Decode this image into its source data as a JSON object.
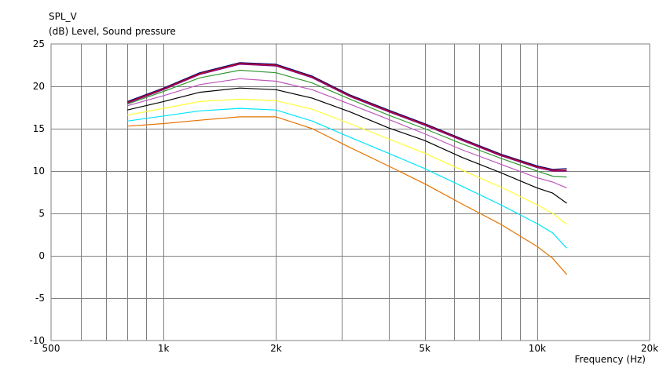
{
  "chart_data": {
    "type": "line",
    "title": "SPL_V",
    "ylabel": "(dB)  Level, Sound pressure",
    "xlabel": "Frequency  (Hz)",
    "x_scale": "log",
    "xlim": [
      500,
      20000
    ],
    "ylim": [
      -10,
      25
    ],
    "grid": true,
    "y_ticks": [
      25,
      20,
      15,
      10,
      5,
      0,
      -5,
      -10
    ],
    "y_tick_labels": [
      "25",
      "20",
      "15",
      "10",
      "5",
      "0",
      "-5",
      "-10"
    ],
    "x_ticks": [
      500,
      1000,
      2000,
      5000,
      10000,
      20000
    ],
    "x_tick_labels": [
      "500",
      "1k",
      "2k",
      "5k",
      "10k",
      "20k"
    ],
    "x_minor_gridlines": [
      600,
      700,
      800,
      900,
      1000,
      2000,
      3000,
      4000,
      5000,
      6000,
      7000,
      8000,
      9000,
      10000
    ],
    "x": [
      800,
      1000,
      1250,
      1600,
      2000,
      2500,
      3150,
      4000,
      5000,
      6300,
      8000,
      10000,
      11000,
      12000
    ],
    "series": [
      {
        "color": "#000080",
        "values": [
          18.2,
          19.8,
          21.6,
          22.8,
          22.6,
          21.2,
          19.0,
          17.2,
          15.6,
          13.8,
          12.0,
          10.6,
          10.2,
          10.3
        ]
      },
      {
        "color": "#cc0000",
        "values": [
          18.1,
          19.7,
          21.5,
          22.7,
          22.5,
          21.1,
          18.9,
          17.1,
          15.5,
          13.7,
          11.9,
          10.5,
          10.1,
          10.1
        ]
      },
      {
        "color": "#800080",
        "values": [
          18.0,
          19.6,
          21.4,
          22.6,
          22.4,
          21.0,
          18.8,
          17.0,
          15.4,
          13.6,
          11.8,
          10.4,
          10.0,
          10.0
        ]
      },
      {
        "color": "#339933",
        "values": [
          17.9,
          19.4,
          21.0,
          21.9,
          21.6,
          20.4,
          18.5,
          16.6,
          15.0,
          13.2,
          11.5,
          10.0,
          9.4,
          9.3
        ]
      },
      {
        "color": "#bb55bb",
        "values": [
          17.7,
          18.9,
          20.2,
          20.9,
          20.6,
          19.6,
          17.9,
          16.1,
          14.4,
          12.5,
          10.8,
          9.2,
          8.7,
          8.0
        ]
      },
      {
        "color": "#000000",
        "values": [
          17.2,
          18.2,
          19.3,
          19.8,
          19.6,
          18.6,
          17.0,
          15.1,
          13.6,
          11.6,
          9.8,
          8.0,
          7.4,
          6.2
        ]
      },
      {
        "color": "#ffff33",
        "values": [
          16.6,
          17.4,
          18.2,
          18.5,
          18.3,
          17.3,
          15.6,
          13.8,
          12.1,
          10.1,
          8.1,
          6.0,
          5.0,
          3.7
        ]
      },
      {
        "color": "#00e5ff",
        "values": [
          15.9,
          16.5,
          17.1,
          17.4,
          17.2,
          15.9,
          14.0,
          12.1,
          10.3,
          8.2,
          6.0,
          3.8,
          2.7,
          0.9
        ]
      },
      {
        "color": "#e67300",
        "values": [
          15.3,
          15.6,
          16.0,
          16.4,
          16.4,
          15.0,
          12.8,
          10.6,
          8.5,
          6.1,
          3.7,
          1.1,
          -0.3,
          -2.2
        ]
      }
    ]
  }
}
